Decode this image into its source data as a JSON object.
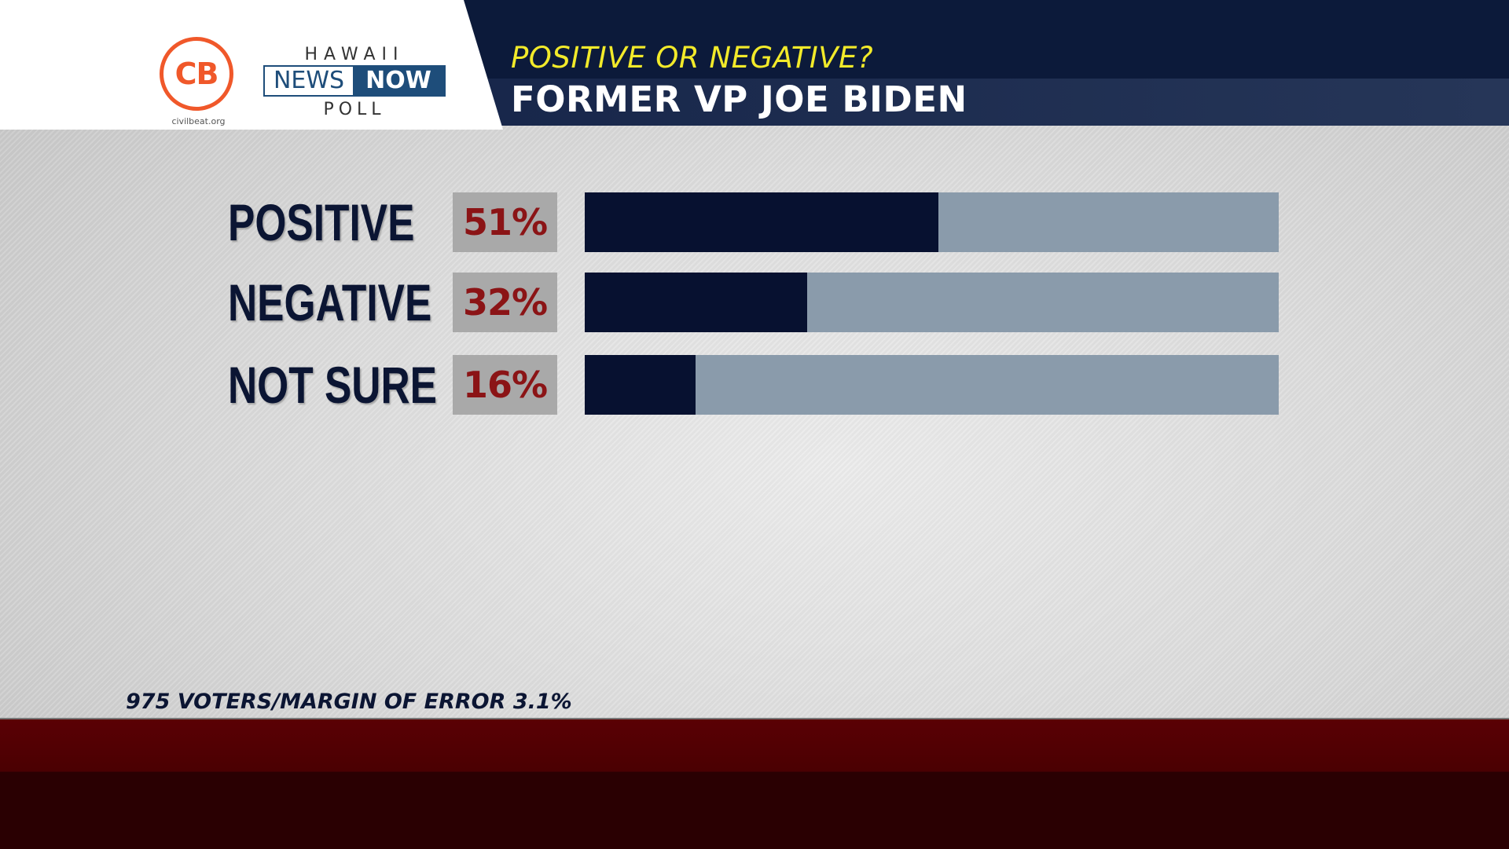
{
  "header": {
    "question": "POSITIVE OR NEGATIVE?",
    "title": "FORMER VP JOE BIDEN"
  },
  "logos": {
    "cb_text": "CB",
    "cb_url": "civilbeat.org",
    "hnn_top": "HAWAII",
    "hnn_news": "NEWS",
    "hnn_now": "NOW",
    "hnn_poll": "POLL"
  },
  "colors": {
    "bar_fill": "#071130",
    "bar_track": "#8a9bab",
    "percent_text": "#8b1416",
    "question_text": "#f2ea2a",
    "header_bg": "#0c1a3a"
  },
  "chart_data": {
    "type": "bar",
    "orientation": "horizontal",
    "categories": [
      "POSITIVE",
      "NEGATIVE",
      "NOT SURE"
    ],
    "values": [
      51,
      32,
      16
    ],
    "labels": [
      "51%",
      "32%",
      "16%"
    ],
    "xlim": [
      0,
      100
    ],
    "title": "FORMER VP JOE BIDEN",
    "subtitle": "POSITIVE OR NEGATIVE?",
    "xlabel": "",
    "ylabel": "",
    "grid": false
  },
  "footnote": "975 VOTERS/MARGIN OF ERROR 3.1%"
}
